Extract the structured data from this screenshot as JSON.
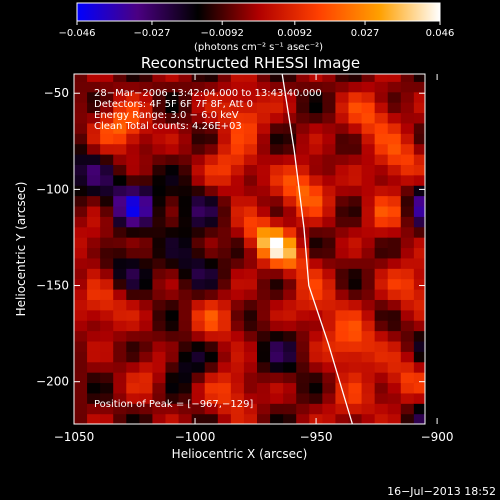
{
  "chart_data": {
    "type": "heatmap",
    "title": "Reconstructed RHESSI Image",
    "xlabel": "Heliocentric X (arcsec)",
    "ylabel": "Heliocentric Y (arcsec)",
    "xlim": [
      -1050,
      -905
    ],
    "ylim": [
      -222,
      -40
    ],
    "x_ticks": [
      -1050,
      -1000,
      -950,
      -900
    ],
    "x_tick_labels": [
      "−1050",
      "−1000",
      "−950",
      "−900"
    ],
    "y_ticks": [
      -50,
      -100,
      -150,
      -200
    ],
    "y_tick_labels": [
      "−50",
      "−100",
      "−150",
      "−200"
    ],
    "colorbar": {
      "range": [
        -0.046,
        0.046
      ],
      "ticks": [
        -0.046,
        -0.027,
        -0.0092,
        0.0092,
        0.027,
        0.046
      ],
      "tick_labels": [
        "−0.046",
        "−0.027",
        "−0.0092",
        "0.0092",
        "0.027",
        "0.046"
      ],
      "units_label": "(photons cm⁻² s⁻¹ asec⁻²)",
      "colors": [
        "#0000ff",
        "#4b0082",
        "#000000",
        "#b00000",
        "#ff4000",
        "#ffa000",
        "#ffffff"
      ]
    },
    "info_lines": [
      "28−Mar−2006 13:42:04.000 to 13:43:40.000",
      "Detectors: 4F 5F 6F 7F 8F, Att 0",
      "Energy Range: 3.0 − 6.0 keV",
      "Clean     Total counts: 4.26E+03"
    ],
    "peak_label": "Position of Peak = [−967,−129]",
    "peak": {
      "x": -967,
      "y": -129,
      "value": 0.046
    },
    "sources": [
      {
        "x": -967,
        "y": -129,
        "value": 0.046
      },
      {
        "x": -955,
        "y": -100,
        "value": 0.028
      },
      {
        "x": -1030,
        "y": -68,
        "value": 0.028
      },
      {
        "x": -980,
        "y": -60,
        "value": 0.022
      },
      {
        "x": -985,
        "y": -88,
        "value": 0.02
      },
      {
        "x": -928,
        "y": -62,
        "value": 0.022
      },
      {
        "x": -915,
        "y": -85,
        "value": 0.022
      },
      {
        "x": -920,
        "y": -112,
        "value": 0.02
      },
      {
        "x": -1040,
        "y": -128,
        "value": 0.014
      },
      {
        "x": -1038,
        "y": -160,
        "value": 0.02
      },
      {
        "x": -992,
        "y": -168,
        "value": 0.018
      },
      {
        "x": -1018,
        "y": -195,
        "value": 0.014
      },
      {
        "x": -985,
        "y": -205,
        "value": 0.02
      },
      {
        "x": -950,
        "y": -160,
        "value": 0.018
      },
      {
        "x": -935,
        "y": -180,
        "value": 0.026
      },
      {
        "x": -910,
        "y": -150,
        "value": 0.02
      },
      {
        "x": -912,
        "y": -200,
        "value": 0.022
      },
      {
        "x": -935,
        "y": -212,
        "value": 0.014
      },
      {
        "x": -1026,
        "y": -108,
        "value": -0.03
      },
      {
        "x": -1000,
        "y": -110,
        "value": -0.014
      },
      {
        "x": -1045,
        "y": -90,
        "value": -0.016
      },
      {
        "x": -1000,
        "y": -140,
        "value": -0.014
      },
      {
        "x": -1030,
        "y": -140,
        "value": -0.016
      },
      {
        "x": -905,
        "y": -108,
        "value": -0.026
      },
      {
        "x": -965,
        "y": -185,
        "value": -0.012
      },
      {
        "x": -1005,
        "y": -190,
        "value": -0.016
      },
      {
        "x": -900,
        "y": -180,
        "value": -0.012
      },
      {
        "x": -905,
        "y": -215,
        "value": -0.014
      }
    ],
    "limb_curve": [
      {
        "x": -964,
        "y": -40
      },
      {
        "x": -959,
        "y": -80
      },
      {
        "x": -955,
        "y": -120
      },
      {
        "x": -953,
        "y": -150
      },
      {
        "x": -945,
        "y": -180
      },
      {
        "x": -935,
        "y": -222
      }
    ],
    "grid": false
  },
  "footer": {
    "timestamp": "16−Jul−2013 18:52"
  }
}
